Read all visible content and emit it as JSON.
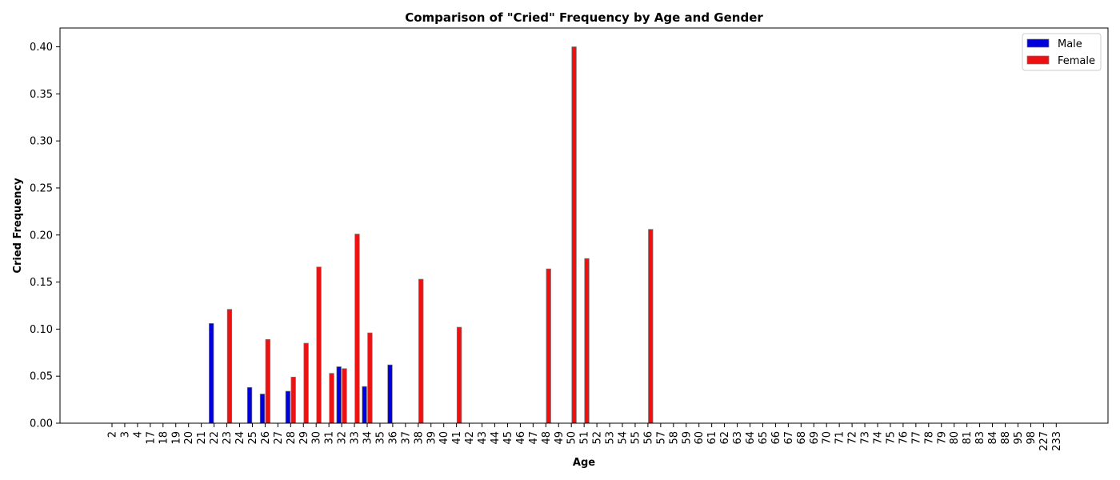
{
  "chart_data": {
    "type": "bar",
    "title": "Comparison of \"Cried\" Frequency by Age and Gender",
    "xlabel": "Age",
    "ylabel": "Cried Frequency",
    "ylim": [
      0,
      0.42
    ],
    "yticks": [
      "0.00",
      "0.05",
      "0.10",
      "0.15",
      "0.20",
      "0.25",
      "0.30",
      "0.35",
      "0.40"
    ],
    "legend_position": "top-right",
    "categories": [
      "2",
      "3",
      "4",
      "17",
      "18",
      "19",
      "20",
      "21",
      "22",
      "23",
      "24",
      "25",
      "26",
      "27",
      "28",
      "29",
      "30",
      "31",
      "32",
      "33",
      "34",
      "35",
      "36",
      "37",
      "38",
      "39",
      "40",
      "41",
      "42",
      "43",
      "44",
      "45",
      "46",
      "47",
      "48",
      "49",
      "50",
      "51",
      "52",
      "53",
      "54",
      "55",
      "56",
      "57",
      "58",
      "59",
      "60",
      "61",
      "62",
      "63",
      "64",
      "65",
      "66",
      "67",
      "68",
      "69",
      "70",
      "71",
      "72",
      "73",
      "74",
      "75",
      "76",
      "77",
      "78",
      "79",
      "80",
      "81",
      "83",
      "84",
      "88",
      "95",
      "98",
      "227",
      "233"
    ],
    "series": [
      {
        "name": "Male",
        "color": "#0000dd",
        "values": [
          0,
          0,
          0,
          0,
          0,
          0,
          0,
          0,
          0.106,
          0,
          0,
          0.038,
          0.031,
          0,
          0.034,
          0,
          0,
          0,
          0.06,
          0,
          0.039,
          0,
          0.062,
          0,
          0,
          0,
          0,
          0,
          0,
          0,
          0,
          0,
          0,
          0,
          0,
          0,
          0,
          0,
          0,
          0,
          0,
          0,
          0,
          0,
          0,
          0,
          0,
          0,
          0,
          0,
          0,
          0,
          0,
          0,
          0,
          0,
          0,
          0,
          0,
          0,
          0,
          0,
          0,
          0,
          0,
          0,
          0,
          0,
          0,
          0,
          0,
          0,
          0,
          0,
          0
        ]
      },
      {
        "name": "Female",
        "color": "#ee1111",
        "values": [
          0,
          0,
          0,
          0,
          0,
          0,
          0,
          0,
          0,
          0.121,
          0,
          0,
          0.089,
          0,
          0.049,
          0.085,
          0.166,
          0.053,
          0.058,
          0.201,
          0.096,
          0,
          0,
          0,
          0.153,
          0,
          0,
          0.102,
          0,
          0,
          0,
          0,
          0,
          0,
          0.164,
          0,
          0.4,
          0.175,
          0,
          0,
          0,
          0,
          0.206,
          0,
          0,
          0,
          0,
          0,
          0,
          0,
          0,
          0,
          0,
          0,
          0,
          0,
          0,
          0,
          0,
          0,
          0,
          0,
          0,
          0,
          0,
          0,
          0,
          0,
          0,
          0,
          0,
          0,
          0,
          0,
          0
        ]
      }
    ]
  }
}
